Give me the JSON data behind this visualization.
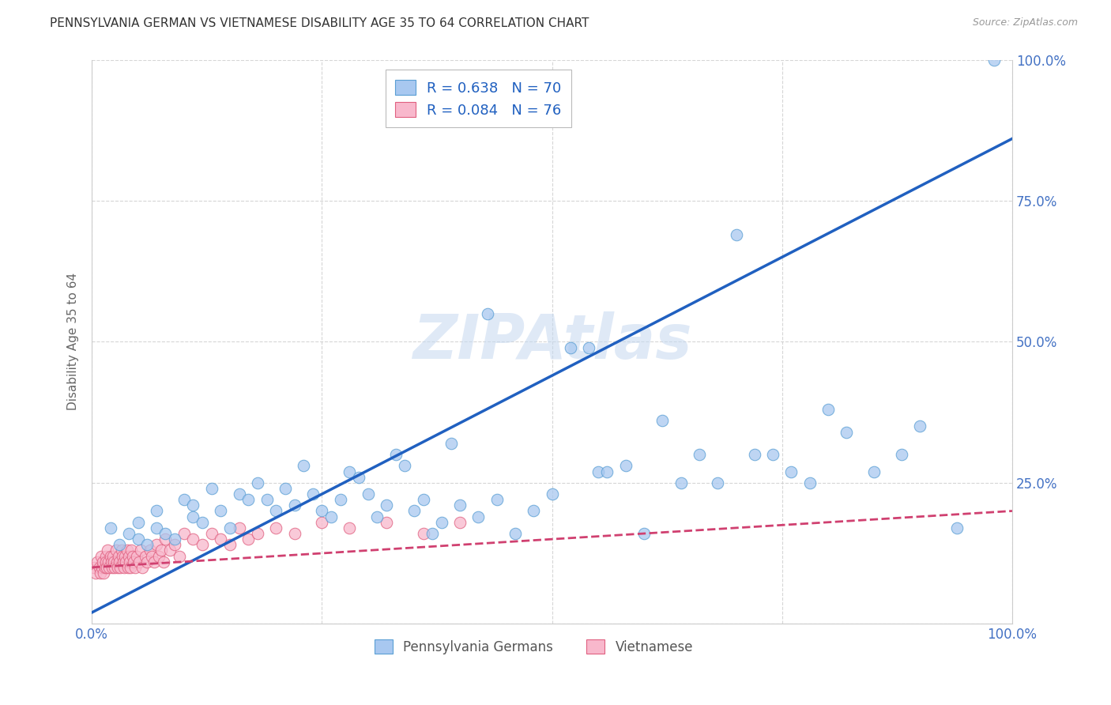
{
  "title": "PENNSYLVANIA GERMAN VS VIETNAMESE DISABILITY AGE 35 TO 64 CORRELATION CHART",
  "source": "Source: ZipAtlas.com",
  "ylabel": "Disability Age 35 to 64",
  "blue_R": "0.638",
  "blue_N": "70",
  "pink_R": "0.084",
  "pink_N": "76",
  "blue_color": "#a8c8f0",
  "blue_edge_color": "#5a9fd4",
  "blue_line_color": "#2060c0",
  "pink_color": "#f8b8cc",
  "pink_edge_color": "#e06080",
  "pink_line_color": "#d04070",
  "legend_label_blue": "Pennsylvania Germans",
  "legend_label_pink": "Vietnamese",
  "watermark": "ZIPAtlas",
  "blue_scatter_x": [
    0.02,
    0.03,
    0.04,
    0.05,
    0.05,
    0.06,
    0.07,
    0.07,
    0.08,
    0.09,
    0.1,
    0.11,
    0.11,
    0.12,
    0.13,
    0.14,
    0.15,
    0.16,
    0.17,
    0.18,
    0.19,
    0.2,
    0.21,
    0.22,
    0.23,
    0.24,
    0.25,
    0.26,
    0.27,
    0.28,
    0.29,
    0.3,
    0.31,
    0.32,
    0.33,
    0.34,
    0.35,
    0.36,
    0.37,
    0.38,
    0.39,
    0.4,
    0.42,
    0.43,
    0.44,
    0.46,
    0.48,
    0.5,
    0.52,
    0.54,
    0.55,
    0.56,
    0.58,
    0.6,
    0.62,
    0.64,
    0.66,
    0.68,
    0.7,
    0.72,
    0.74,
    0.76,
    0.78,
    0.8,
    0.82,
    0.85,
    0.88,
    0.9,
    0.94,
    0.98
  ],
  "blue_scatter_y": [
    0.17,
    0.14,
    0.16,
    0.15,
    0.18,
    0.14,
    0.2,
    0.17,
    0.16,
    0.15,
    0.22,
    0.21,
    0.19,
    0.18,
    0.24,
    0.2,
    0.17,
    0.23,
    0.22,
    0.25,
    0.22,
    0.2,
    0.24,
    0.21,
    0.28,
    0.23,
    0.2,
    0.19,
    0.22,
    0.27,
    0.26,
    0.23,
    0.19,
    0.21,
    0.3,
    0.28,
    0.2,
    0.22,
    0.16,
    0.18,
    0.32,
    0.21,
    0.19,
    0.55,
    0.22,
    0.16,
    0.2,
    0.23,
    0.49,
    0.49,
    0.27,
    0.27,
    0.28,
    0.16,
    0.36,
    0.25,
    0.3,
    0.25,
    0.69,
    0.3,
    0.3,
    0.27,
    0.25,
    0.38,
    0.34,
    0.27,
    0.3,
    0.35,
    0.17,
    1.0
  ],
  "pink_scatter_x": [
    0.002,
    0.004,
    0.006,
    0.008,
    0.009,
    0.01,
    0.011,
    0.012,
    0.013,
    0.014,
    0.015,
    0.015,
    0.016,
    0.017,
    0.018,
    0.019,
    0.02,
    0.021,
    0.022,
    0.023,
    0.024,
    0.025,
    0.026,
    0.027,
    0.028,
    0.029,
    0.03,
    0.031,
    0.032,
    0.033,
    0.034,
    0.035,
    0.036,
    0.037,
    0.038,
    0.039,
    0.04,
    0.041,
    0.042,
    0.043,
    0.044,
    0.045,
    0.047,
    0.049,
    0.051,
    0.053,
    0.055,
    0.058,
    0.06,
    0.063,
    0.065,
    0.068,
    0.07,
    0.073,
    0.075,
    0.078,
    0.08,
    0.085,
    0.09,
    0.095,
    0.1,
    0.11,
    0.12,
    0.13,
    0.14,
    0.15,
    0.16,
    0.17,
    0.18,
    0.2,
    0.22,
    0.25,
    0.28,
    0.32,
    0.36,
    0.4
  ],
  "pink_scatter_y": [
    0.1,
    0.09,
    0.11,
    0.1,
    0.09,
    0.12,
    0.1,
    0.11,
    0.09,
    0.1,
    0.12,
    0.11,
    0.1,
    0.13,
    0.11,
    0.1,
    0.12,
    0.11,
    0.1,
    0.12,
    0.11,
    0.1,
    0.13,
    0.11,
    0.1,
    0.12,
    0.11,
    0.1,
    0.13,
    0.12,
    0.11,
    0.1,
    0.12,
    0.11,
    0.13,
    0.1,
    0.12,
    0.11,
    0.1,
    0.13,
    0.12,
    0.11,
    0.1,
    0.12,
    0.11,
    0.13,
    0.1,
    0.12,
    0.11,
    0.13,
    0.12,
    0.11,
    0.14,
    0.12,
    0.13,
    0.11,
    0.15,
    0.13,
    0.14,
    0.12,
    0.16,
    0.15,
    0.14,
    0.16,
    0.15,
    0.14,
    0.17,
    0.15,
    0.16,
    0.17,
    0.16,
    0.18,
    0.17,
    0.18,
    0.16,
    0.18
  ],
  "blue_line_x": [
    0.0,
    1.0
  ],
  "blue_line_y": [
    0.02,
    0.86
  ],
  "pink_line_x": [
    0.0,
    1.0
  ],
  "pink_line_y": [
    0.1,
    0.2
  ],
  "xlim": [
    0.0,
    1.0
  ],
  "ylim": [
    0.0,
    1.0
  ],
  "title_color": "#333333",
  "axis_tick_color": "#4472c4",
  "grid_color": "#cccccc",
  "right_axis_color": "#4472c4"
}
